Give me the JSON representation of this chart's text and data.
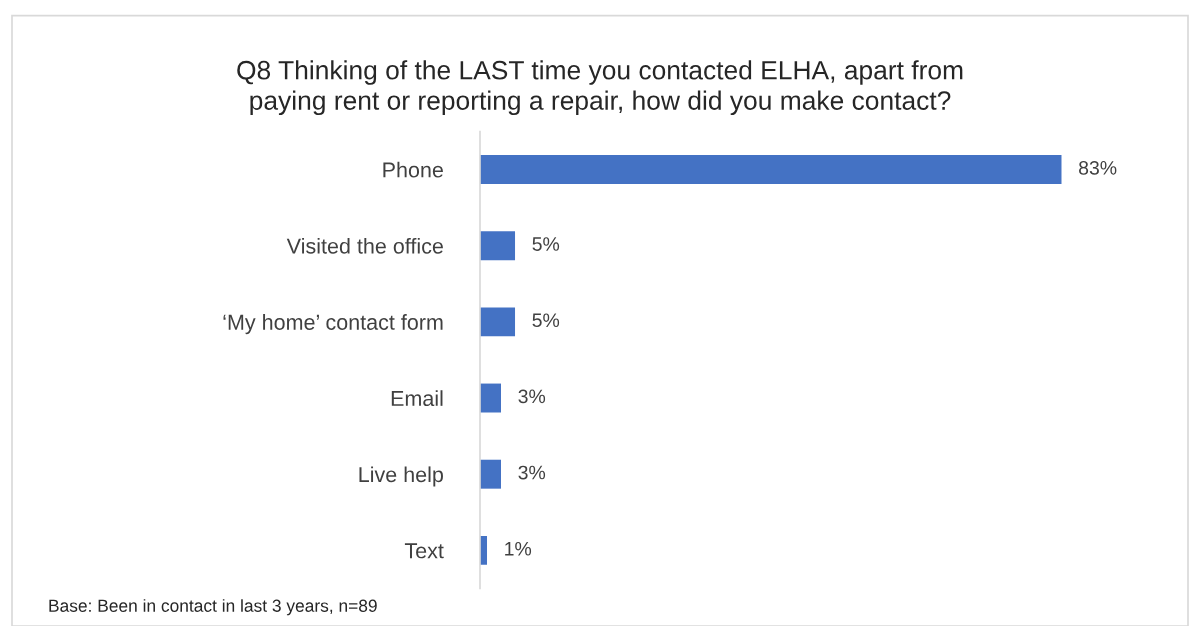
{
  "chart_data": {
    "type": "bar",
    "orientation": "horizontal",
    "title": "Q8 Thinking of the LAST time you contacted ELHA, apart from\npaying rent or reporting a repair, how did you make contact?",
    "categories": [
      "Phone",
      "Visited the office",
      "‘My home’ contact form",
      "Email",
      "Live help",
      "Text"
    ],
    "values": [
      83,
      5,
      5,
      3,
      3,
      1
    ],
    "value_labels": [
      "83%",
      "5%",
      "5%",
      "3%",
      "3%",
      "1%"
    ],
    "color": "#4472c4",
    "grid": false,
    "legend": false,
    "annotations": [
      "Base: Been in contact in last 3 years, n=89"
    ]
  }
}
